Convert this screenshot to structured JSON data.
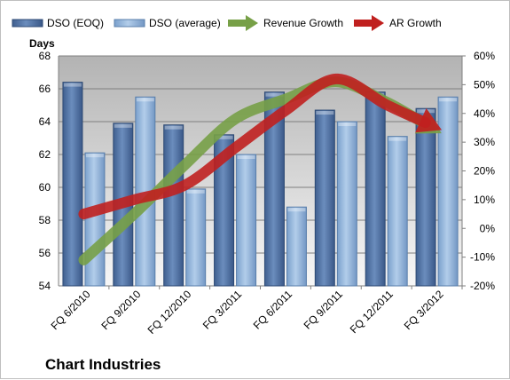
{
  "chart_data": {
    "type": "bar",
    "title": "Chart Industries",
    "ylabel": "Days",
    "categories": [
      "FQ 6/2010",
      "FQ 9/2010",
      "FQ 12/2010",
      "FQ 3/2011",
      "FQ 6/2011",
      "FQ 9/2011",
      "FQ 12/2011",
      "FQ 3/2012"
    ],
    "ylim": [
      54,
      68
    ],
    "y_ticks": [
      "54",
      "56",
      "58",
      "60",
      "62",
      "64",
      "66",
      "68"
    ],
    "y2lim": [
      -20,
      60
    ],
    "y2_ticks": [
      "-20%",
      "-10%",
      "0%",
      "10%",
      "20%",
      "30%",
      "40%",
      "50%",
      "60%"
    ],
    "legend_position": "top",
    "grid": true,
    "series": [
      {
        "name": "DSO (EOQ)",
        "kind": "bar",
        "axis": "left",
        "color": "#4f6f9f",
        "values": [
          66.4,
          63.9,
          63.8,
          63.2,
          65.8,
          64.7,
          65.8,
          64.8
        ]
      },
      {
        "name": "DSO (average)",
        "kind": "bar",
        "axis": "left",
        "color": "#8fb4dc",
        "values": [
          62.1,
          65.5,
          59.9,
          62.0,
          58.8,
          64.0,
          63.1,
          65.5
        ]
      },
      {
        "name": "Revenue Growth",
        "kind": "arrow-line",
        "axis": "right",
        "color": "#77a047",
        "values": [
          -11,
          5,
          22,
          38,
          45,
          51,
          44,
          34
        ]
      },
      {
        "name": "AR Growth",
        "kind": "arrow-line",
        "axis": "right",
        "color": "#c0201f",
        "values": [
          5,
          10,
          15,
          28,
          41,
          52,
          43,
          35
        ]
      }
    ]
  }
}
